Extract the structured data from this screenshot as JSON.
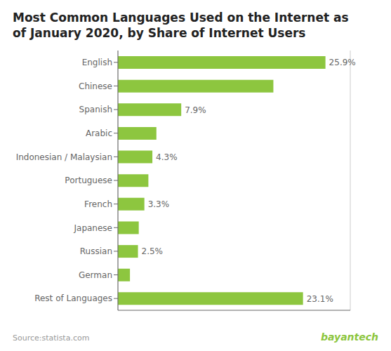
{
  "chart_data": {
    "type": "bar",
    "orientation": "horizontal",
    "title": "Most Common Languages Used on the Internet as",
    "subtitle": "of January 2020, by Share of Internet Users",
    "categories": [
      "English",
      "Chinese",
      "Spanish",
      "Arabic",
      "Indonesian / Malaysian",
      "Portuguese",
      "French",
      "Japanese",
      "Russian",
      "German",
      "Rest of Languages"
    ],
    "values": [
      25.9,
      19.4,
      7.9,
      4.8,
      4.3,
      3.8,
      3.3,
      2.6,
      2.5,
      1.5,
      23.1
    ],
    "value_labels": [
      "25.9%",
      null,
      "7.9%",
      null,
      "4.3%",
      null,
      "3.3%",
      null,
      "2.5%",
      null,
      "23.1%"
    ],
    "data_labels": true,
    "color": "#8DC63F",
    "xlim": [
      0,
      29
    ],
    "xticks": [
      0,
      5,
      10,
      15,
      20,
      25
    ],
    "grid": true,
    "tick_labels": "y",
    "annotations": [
      "Source:statista.com",
      "bayantech"
    ]
  }
}
